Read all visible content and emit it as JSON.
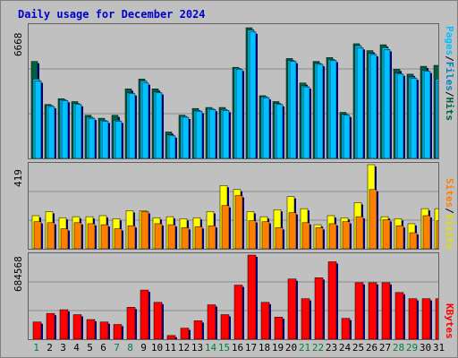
{
  "title": "Daily usage for December 2024",
  "colors": {
    "hits": "#006040",
    "files": "#00ccff",
    "pages": "#00c0ff",
    "visits": "#ffff00",
    "sites": "#ff8000",
    "kbytes": "#ff0000",
    "weekend_label": "#008040"
  },
  "legend": {
    "panel1": [
      "Pages",
      "/",
      "Files",
      "/",
      "Hits"
    ],
    "panel2": [
      "Sites",
      "/",
      "Visits"
    ],
    "panel3": [
      "KBytes"
    ]
  },
  "chart_data": [
    {
      "type": "bar",
      "title": "Daily usage for December 2024",
      "ymax_label": "6668",
      "ylim": [
        0,
        6668
      ],
      "grid": true,
      "categories": [
        "1",
        "2",
        "3",
        "4",
        "5",
        "6",
        "7",
        "8",
        "9",
        "10",
        "11",
        "12",
        "13",
        "14",
        "15",
        "16",
        "17",
        "18",
        "19",
        "20",
        "21",
        "22",
        "23",
        "24",
        "25",
        "26",
        "27",
        "28",
        "29",
        "30",
        "31"
      ],
      "weekend_days": [
        "1",
        "7",
        "8",
        "14",
        "15",
        "21",
        "22",
        "28",
        "29"
      ],
      "series": [
        {
          "name": "Hits",
          "values": [
            4950,
            2750,
            3050,
            2900,
            2200,
            2050,
            2200,
            3550,
            4050,
            3550,
            1350,
            2200,
            2550,
            2600,
            2600,
            4650,
            6668,
            3200,
            2900,
            5100,
            3850,
            4950,
            5150,
            2350,
            5850,
            5500,
            5800,
            4550,
            4300,
            4700,
            4750
          ]
        },
        {
          "name": "Files",
          "values": [
            4050,
            2700,
            3000,
            2800,
            2100,
            1950,
            1950,
            3350,
            3950,
            3400,
            1200,
            2150,
            2450,
            2550,
            2500,
            4600,
            6550,
            3150,
            2800,
            5000,
            3700,
            4850,
            5050,
            2250,
            5750,
            5350,
            5650,
            4350,
            4150,
            4500,
            4050
          ]
        },
        {
          "name": "Pages",
          "values": [
            3950,
            2650,
            2950,
            2750,
            2050,
            1900,
            1900,
            3300,
            3850,
            3350,
            1150,
            2100,
            2400,
            2500,
            2450,
            4550,
            6450,
            3100,
            2750,
            4950,
            3650,
            4800,
            5000,
            2200,
            5650,
            5300,
            5550,
            4300,
            4100,
            4450,
            3950
          ]
        }
      ]
    },
    {
      "type": "bar",
      "ymax_label": "419",
      "ylim": [
        0,
        419
      ],
      "grid": true,
      "categories": [
        "1",
        "2",
        "3",
        "4",
        "5",
        "6",
        "7",
        "8",
        "9",
        "10",
        "11",
        "12",
        "13",
        "14",
        "15",
        "16",
        "17",
        "18",
        "19",
        "20",
        "21",
        "22",
        "23",
        "24",
        "25",
        "26",
        "27",
        "28",
        "29",
        "30",
        "31"
      ],
      "series": [
        {
          "name": "Visits",
          "values": [
            165,
            185,
            155,
            160,
            160,
            165,
            150,
            190,
            190,
            155,
            160,
            150,
            155,
            185,
            315,
            295,
            185,
            160,
            195,
            260,
            200,
            120,
            165,
            155,
            230,
            419,
            160,
            150,
            125,
            200,
            200
          ]
        },
        {
          "name": "Sites",
          "values": [
            135,
            130,
            100,
            130,
            125,
            120,
            100,
            115,
            185,
            125,
            120,
            105,
            110,
            115,
            215,
            265,
            140,
            135,
            105,
            180,
            130,
            105,
            125,
            135,
            160,
            295,
            145,
            115,
            80,
            165,
            140
          ]
        }
      ]
    },
    {
      "type": "bar",
      "ymax_label": "684568",
      "ylim": [
        0,
        684568
      ],
      "grid": true,
      "categories": [
        "1",
        "2",
        "3",
        "4",
        "5",
        "6",
        "7",
        "8",
        "9",
        "10",
        "11",
        "12",
        "13",
        "14",
        "15",
        "16",
        "17",
        "18",
        "19",
        "20",
        "21",
        "22",
        "23",
        "24",
        "25",
        "26",
        "27",
        "28",
        "29",
        "30",
        "31"
      ],
      "series": [
        {
          "name": "KBytes",
          "values": [
            140000,
            210000,
            240000,
            200000,
            160000,
            140000,
            120000,
            260000,
            400000,
            300000,
            30000,
            90000,
            150000,
            280000,
            200000,
            440000,
            684568,
            300000,
            180000,
            490000,
            330000,
            500000,
            630000,
            170000,
            460000,
            460000,
            460000,
            380000,
            330000,
            330000,
            330000
          ]
        }
      ]
    }
  ]
}
